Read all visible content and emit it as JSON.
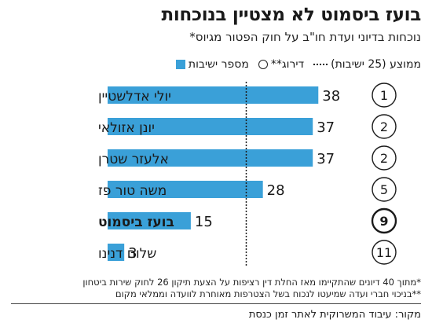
{
  "header": {
    "title": "בועז ביסמוט לא מצטיין בנוכחות",
    "subtitle": "נוכחות בדיוני ועדת חו\"ב על חוק הפטור מגיוס*"
  },
  "legend": {
    "bars": "מספר ישיבות",
    "rank": "דירוג**",
    "average": "ממוצע (25 ישיבות)"
  },
  "chart_data": {
    "type": "bar",
    "orientation": "horizontal",
    "categories": [
      "יולי אדלשטיין",
      "יונן אזולאי",
      "אלעזר שטרן",
      "משה טור פז",
      "בועז ביסמוט",
      "שלום דנינו"
    ],
    "values": [
      38,
      37,
      37,
      28,
      15,
      3
    ],
    "ranks": [
      "1",
      "2",
      "2",
      "5",
      "9",
      "11"
    ],
    "highlight": "בועז ביסמוט",
    "average": 25,
    "xlim": [
      0,
      38
    ],
    "bar_color": "#3aa0d8",
    "grid": false
  },
  "footnotes": {
    "note1": "*מתוך 40 דיונים שהתקיימו מאז החלת דין רציפות על הצעת תיקון 26 לחוק שירות ביטחון",
    "note2": "**בניכוי חברי ועדה שמיעטו לנכוח בשל הצטרפות מאוחרת לוועדה וממלאי מקום"
  },
  "source": "מקור: עיבוד המשרוקית לאתר זמן כנסת"
}
